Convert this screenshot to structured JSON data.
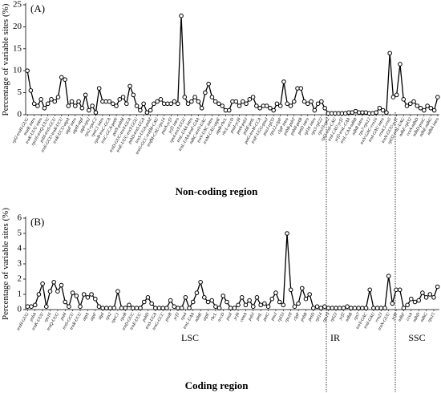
{
  "chart_data": [
    {
      "type": "line",
      "title": "(A)",
      "x_label": "Non-coding region",
      "y_label": "Percentage of variable sites (%)",
      "ylim": [
        0,
        25
      ],
      "yticks": [
        0,
        5,
        10,
        15,
        20,
        25
      ],
      "categories": [
        "rpl2-trnH-GUG",
        null,
        "matK intro",
        null,
        "trnK-UUU intro",
        null,
        "rps16-trnQ-UUG",
        null,
        "psbI-trnS-GCU",
        null,
        "trnS-GCU-trnR-UCU",
        null,
        "trnR-UCU-atpA",
        null,
        "atpF intro",
        null,
        "atpH-atpI",
        null,
        "atpI-rps2",
        null,
        "rps2-rpoC2",
        null,
        "rpoC1 intro",
        null,
        "rpoB-trnC-GCA",
        null,
        "trnC-GCA-petN",
        null,
        "petN-psbM",
        null,
        "trnD-GUC-trnY-GUA",
        null,
        "trnE-UUC-trnT-GGU",
        null,
        "psbD-trnS-UGA",
        null,
        "trnS-UGA-psbZ",
        null,
        "trnG-GCC-trnfM-CAU",
        null,
        "trnfM-CAU-rps14",
        null,
        "psaA-ycf3",
        null,
        "ycf3 intro",
        null,
        "rps4-trnT-UGU",
        null,
        "trnL-UAA intro",
        null,
        "trnL-UAA-trnF-GAA",
        null,
        "ndhC-trnV-UAC",
        null,
        "trnV-UAC intro",
        null,
        "trnM-CAU-atpE",
        null,
        "atpB-rbcL",
        null,
        "rbcL-accD",
        null,
        "psaI-ycf4",
        null,
        "petA-psbJ",
        null,
        "psbE-petL",
        null,
        "petG-trnW-CCA",
        null,
        "trnP-UGG-psaJ",
        null,
        "psaJ-rpl33",
        null,
        "rps12-clpP",
        null,
        "clpP intro",
        null,
        "psbB-psbT",
        null,
        "psbH-petB",
        null,
        "petD intro",
        null,
        "rpl16 intro",
        null,
        "rps3-rpl22",
        null,
        "rps19-rpl2",
        null,
        "rpl2-trnI-CAU",
        null,
        "trnI-CAU-ycf2",
        null,
        "ycf2-trnL-CAA",
        null,
        "trnL-CAA-ndhB",
        null,
        "ndhB intro",
        null,
        "rps7-rps12",
        null,
        "trnV-GAC-rrn16",
        null,
        "trnI-GAU intro",
        null,
        "rrn4.5-rrn5",
        null,
        "trnN-GUU-ycf1",
        null,
        "rpl32-trnL-UAG",
        null,
        "ndhF-rpl32",
        null,
        "ccsA-ndhD",
        null,
        "ndhD-psaC",
        null,
        "ndhE-ndhG",
        null,
        "ndhA intro"
      ],
      "series": [
        {
          "color": "#000000",
          "values": [
            10,
            5.5,
            2.5,
            2,
            3.5,
            1.5,
            2.5,
            3.5,
            3,
            4,
            8.5,
            8,
            2,
            3,
            2,
            3,
            1.5,
            4.5,
            1,
            2,
            0.5,
            6,
            3,
            3,
            3,
            2.5,
            2,
            3.5,
            4,
            2.5,
            6.5,
            4.5,
            2,
            1,
            2.5,
            0.5,
            1,
            2.5,
            3,
            3.5,
            2.5,
            2.5,
            2.5,
            3,
            2.5,
            22.5,
            4,
            2.5,
            3,
            4,
            3,
            1.5,
            5,
            7,
            4,
            3,
            2.5,
            2,
            1,
            1,
            3,
            3,
            2,
            3,
            2.5,
            3.5,
            4,
            2,
            1.5,
            2,
            2,
            1.5,
            1,
            2.5,
            2,
            7.5,
            2.5,
            2,
            3,
            6,
            6,
            3,
            2.5,
            3,
            1,
            2.5,
            3,
            1.5,
            0.3,
            0.3,
            0.3,
            0.3,
            0.3,
            0.3,
            0.5,
            0.5,
            0.8,
            0.5,
            0.5,
            0.5,
            0.3,
            0.3,
            0.5,
            1.5,
            1,
            0.5,
            14,
            4,
            4.5,
            11.5,
            3.5,
            2,
            2.5,
            3,
            2,
            1.5,
            1,
            2,
            1.5,
            1,
            4
          ]
        }
      ]
    },
    {
      "type": "line",
      "title": "(B)",
      "x_label": "Coding region",
      "y_label": "Percentage of variable sites (%)",
      "ylim": [
        0,
        6
      ],
      "yticks": [
        0,
        1,
        2,
        3,
        4,
        5,
        6
      ],
      "annotations": [
        "LSC",
        "IR",
        "SSC"
      ],
      "categories": [
        "trnH-GUG",
        null,
        "psbA",
        null,
        "trnK-UUU",
        null,
        "rps16",
        null,
        "trnQ-UUG",
        null,
        "psbI",
        null,
        "trnS-GCU",
        null,
        "trnR-UCU",
        null,
        "atpA",
        null,
        "atpF",
        null,
        "atpI",
        null,
        "rps2",
        null,
        "rpoC1",
        null,
        "rpoB",
        null,
        "trnD-GUC",
        null,
        "trnE-UUC",
        null,
        "psbD",
        null,
        "trnS-UGA",
        null,
        "trnG-GCC",
        null,
        "psaB",
        null,
        "ycf3",
        null,
        "rps4",
        null,
        "trnL-UAA",
        null,
        "ndhK",
        null,
        "atpE",
        null,
        "rbcL",
        null,
        "accD",
        null,
        "psaI",
        null,
        "ycf4",
        null,
        "cemA",
        null,
        "psbJ",
        null,
        "petL",
        null,
        "petG",
        null,
        "psaJ",
        null,
        "rpl33",
        null,
        "rps18",
        null,
        "clpP",
        null,
        "psbB",
        null,
        "petD",
        null,
        "rpl14",
        null,
        "rps19",
        null,
        "rpl23",
        null,
        "ycf2",
        null,
        "ndhB",
        null,
        "rps7",
        null,
        "trnV-GAC",
        null,
        "trnI-GAU",
        null,
        "rrn23",
        null,
        "trnN-GUU",
        null,
        "ycf1",
        null,
        "ndhF",
        null,
        "ccsA",
        null,
        "ndhD",
        null,
        "ndhG",
        null,
        "rps15",
        null
      ],
      "series": [
        {
          "color": "#000000",
          "values": [
            0.2,
            0.2,
            0.3,
            1,
            1.7,
            0.2,
            1.2,
            1.8,
            1.2,
            1.6,
            0.5,
            0.2,
            1.1,
            0.9,
            0.2,
            1,
            0.8,
            1,
            0.7,
            0.2,
            0.1,
            0.1,
            0.1,
            0.1,
            1.2,
            0.1,
            0.1,
            0.3,
            0.1,
            0.1,
            0.1,
            0.5,
            0.8,
            0.4,
            0.1,
            0.1,
            0.1,
            0.1,
            0.6,
            0.2,
            0.1,
            0.1,
            0.8,
            0.1,
            0.5,
            1.1,
            1.8,
            0.8,
            0.5,
            0.6,
            0.2,
            0.1,
            0.9,
            0.5,
            0.1,
            0.1,
            0.3,
            0.8,
            0.3,
            0.6,
            0.2,
            0.8,
            0.3,
            0.4,
            0.2,
            0.7,
            1.1,
            0.5,
            0.3,
            5,
            1.3,
            0.2,
            0.4,
            1.4,
            0.7,
            1,
            0.1,
            0.2,
            0.1,
            0.2,
            0.1,
            0.1,
            0.1,
            0.1,
            0.1,
            0.2,
            0.1,
            0.1,
            0.1,
            0.1,
            0.1,
            1.3,
            0.1,
            0.1,
            0.1,
            0.1,
            2.2,
            0.4,
            1.3,
            1.3,
            0.1,
            0.3,
            0.7,
            0.5,
            0.6,
            1.1,
            0.8,
            1,
            0.8,
            1.5
          ]
        }
      ]
    }
  ]
}
